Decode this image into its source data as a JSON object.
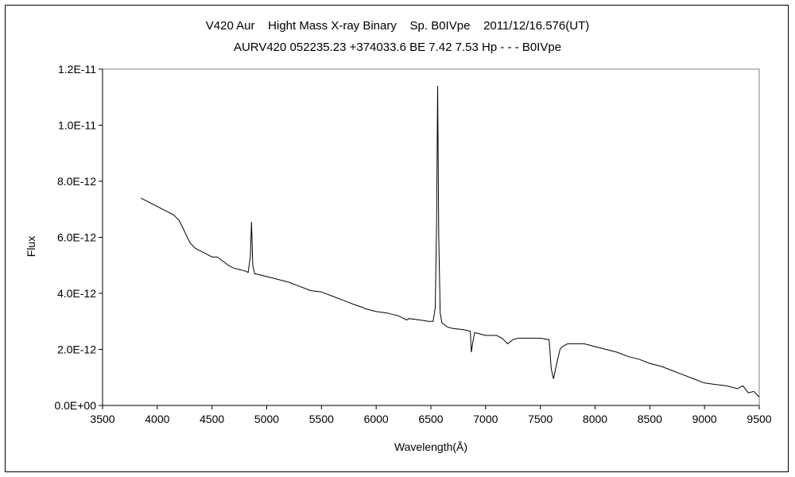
{
  "chart_data": {
    "type": "line",
    "title": "V420 Aur    Hight Mass X-ray Binary    Sp. B0IVpe    2011/12/16.576(UT)",
    "subtitle": "AURV420 052235.23 +374033.6 BE 7.42 7.53 Hp - - - B0IVpe",
    "xlabel": "Wavelength(Å)",
    "ylabel": "Flux",
    "xlim": [
      3500,
      9500
    ],
    "ylim": [
      0,
      1.2e-11
    ],
    "x_ticks": [
      3500,
      4000,
      4500,
      5000,
      5500,
      6000,
      6500,
      7000,
      7500,
      8000,
      8500,
      9000,
      9500
    ],
    "x_tick_labels": [
      "3500",
      "4000",
      "4500",
      "5000",
      "5500",
      "6000",
      "6500",
      "7000",
      "7500",
      "8000",
      "8500",
      "9000",
      "9500"
    ],
    "y_ticks": [
      0,
      2e-12,
      4e-12,
      6e-12,
      8e-12,
      1e-11,
      1.2e-11
    ],
    "y_tick_labels": [
      "0.0E+00",
      "2.0E-12",
      "4.0E-12",
      "6.0E-12",
      "8.0E-12",
      "1.0E-11",
      "1.2E-11"
    ],
    "grid": false,
    "series": [
      {
        "color": "#000000",
        "x": [
          3850,
          3900,
          3950,
          4000,
          4050,
          4100,
          4150,
          4200,
          4250,
          4300,
          4350,
          4400,
          4450,
          4500,
          4550,
          4600,
          4650,
          4700,
          4750,
          4800,
          4830,
          4850,
          4861,
          4872,
          4890,
          4950,
          5000,
          5100,
          5200,
          5300,
          5400,
          5500,
          5600,
          5700,
          5800,
          5876,
          5900,
          6000,
          6100,
          6200,
          6280,
          6300,
          6400,
          6480,
          6520,
          6540,
          6552,
          6562,
          6572,
          6585,
          6600,
          6650,
          6700,
          6800,
          6860,
          6870,
          6885,
          6900,
          6950,
          7000,
          7100,
          7150,
          7200,
          7250,
          7300,
          7400,
          7500,
          7580,
          7600,
          7620,
          7650,
          7680,
          7700,
          7750,
          7800,
          7900,
          8000,
          8100,
          8200,
          8300,
          8400,
          8500,
          8600,
          8700,
          8800,
          8900,
          9000,
          9100,
          9200,
          9300,
          9350,
          9400,
          9450,
          9500
        ],
        "y": [
          7.4e-12,
          7.3e-12,
          7.2e-12,
          7.1e-12,
          7e-12,
          6.9e-12,
          6.8e-12,
          6.6e-12,
          6.2e-12,
          5.8e-12,
          5.6e-12,
          5.5e-12,
          5.4e-12,
          5.3e-12,
          5.3e-12,
          5.15e-12,
          5e-12,
          4.9e-12,
          4.85e-12,
          4.8e-12,
          4.75e-12,
          5.3e-12,
          6.55e-12,
          5e-12,
          4.7e-12,
          4.65e-12,
          4.6e-12,
          4.5e-12,
          4.4e-12,
          4.25e-12,
          4.1e-12,
          4.05e-12,
          3.9e-12,
          3.75e-12,
          3.6e-12,
          3.5e-12,
          3.45e-12,
          3.35e-12,
          3.3e-12,
          3.2e-12,
          3.05e-12,
          3.1e-12,
          3.05e-12,
          3e-12,
          3e-12,
          3.5e-12,
          6.5e-12,
          1.14e-11,
          6e-12,
          3.3e-12,
          2.95e-12,
          2.8e-12,
          2.75e-12,
          2.7e-12,
          2.65e-12,
          1.9e-12,
          2.3e-12,
          2.6e-12,
          2.55e-12,
          2.5e-12,
          2.5e-12,
          2.4e-12,
          2.2e-12,
          2.35e-12,
          2.4e-12,
          2.4e-12,
          2.4e-12,
          2.35e-12,
          1.3e-12,
          9.5e-13,
          1.5e-12,
          2e-12,
          2.1e-12,
          2.2e-12,
          2.2e-12,
          2.2e-12,
          2.1e-12,
          2e-12,
          1.9e-12,
          1.75e-12,
          1.65e-12,
          1.5e-12,
          1.4e-12,
          1.25e-12,
          1.1e-12,
          9.5e-13,
          8e-13,
          7.5e-13,
          7e-13,
          6e-13,
          7e-13,
          4.5e-13,
          5e-13,
          3e-13
        ]
      }
    ]
  }
}
